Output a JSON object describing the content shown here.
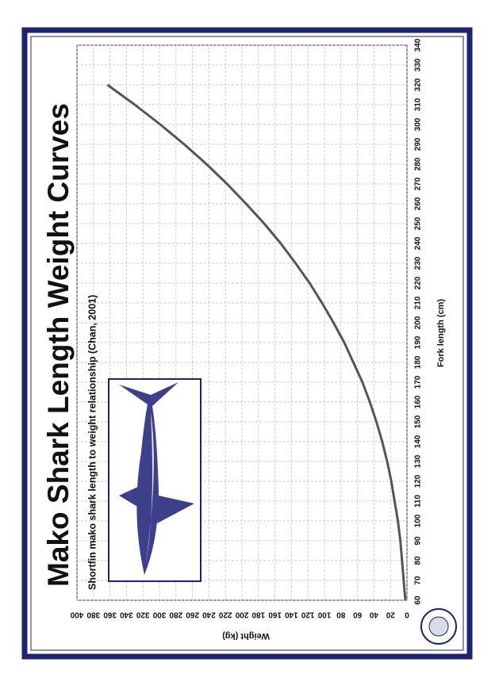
{
  "chart_data": {
    "type": "line",
    "title": "Mako Shark Length Weight Curves",
    "subtitle": "Shortfin mako shark length to weight relationship (Chan, 2001)",
    "x_label": "Fork length (cm)",
    "y_label": "Weight (kg)",
    "x": [
      60,
      70,
      80,
      90,
      100,
      110,
      120,
      130,
      140,
      150,
      160,
      170,
      180,
      190,
      200,
      210,
      220,
      230,
      240,
      250,
      260,
      270,
      280,
      290,
      300,
      310,
      320
    ],
    "series": [
      {
        "name": "Shortfin mako",
        "color": "#555555",
        "values": [
          2,
          4,
          6,
          8,
          11,
          15,
          19,
          24,
          30,
          37,
          45,
          54,
          65,
          76,
          89,
          103,
          118,
          135,
          153,
          173,
          195,
          218,
          243,
          270,
          299,
          330,
          363
        ]
      }
    ],
    "xlim": [
      60,
      340
    ],
    "xticks": [
      60,
      70,
      80,
      90,
      100,
      110,
      120,
      130,
      140,
      150,
      160,
      170,
      180,
      190,
      200,
      210,
      220,
      230,
      240,
      250,
      260,
      270,
      280,
      290,
      300,
      310,
      320,
      330,
      340
    ],
    "ylim": [
      0,
      400
    ],
    "yticks": [
      0,
      20,
      40,
      60,
      80,
      100,
      120,
      140,
      160,
      180,
      200,
      220,
      240,
      260,
      280,
      300,
      320,
      340,
      360,
      380,
      400
    ],
    "grid": true
  }
}
